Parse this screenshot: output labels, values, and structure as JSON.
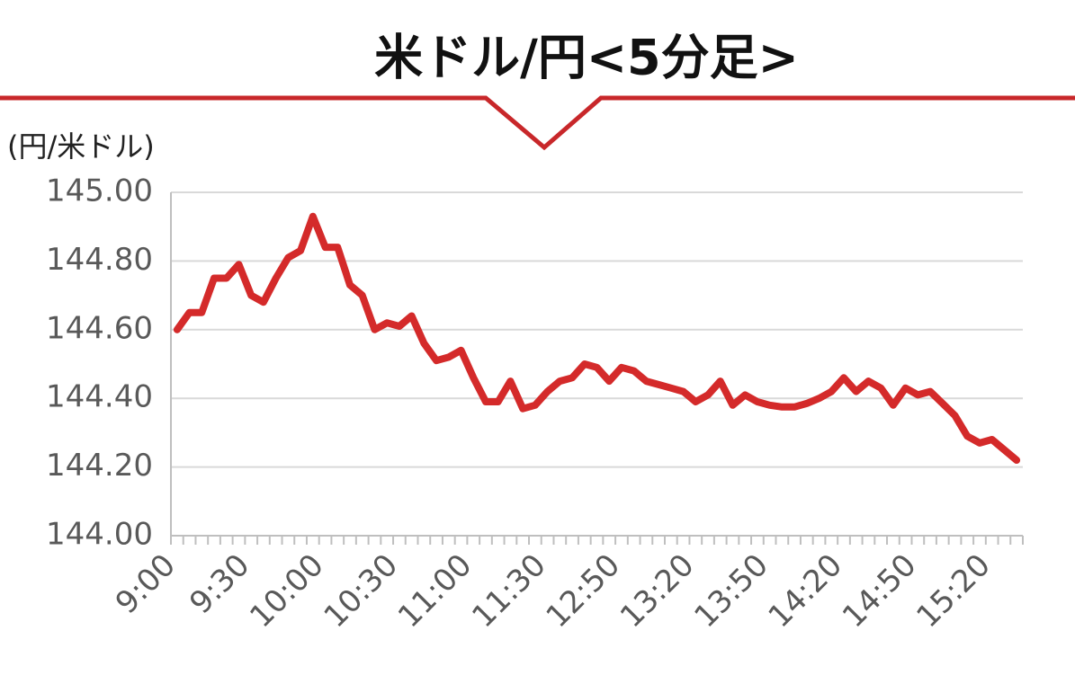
{
  "chart_data": {
    "type": "line",
    "title": "米ドル/円<5分足>",
    "y_label": "(円/米ドル)",
    "categories": [
      "9:00",
      null,
      null,
      null,
      null,
      null,
      "9:30",
      null,
      null,
      null,
      null,
      null,
      "10:00",
      null,
      null,
      null,
      null,
      null,
      "10:30",
      null,
      null,
      null,
      null,
      null,
      "11:00",
      null,
      null,
      null,
      null,
      null,
      "11:30",
      null,
      null,
      null,
      null,
      null,
      "12:50",
      null,
      null,
      null,
      null,
      null,
      "13:20",
      null,
      null,
      null,
      null,
      null,
      "13:50",
      null,
      null,
      null,
      null,
      null,
      "14:20",
      null,
      null,
      null,
      null,
      null,
      "14:50",
      null,
      null,
      null,
      null,
      null,
      "15:20",
      null,
      null
    ],
    "values": [
      144.6,
      144.65,
      144.65,
      144.75,
      144.75,
      144.79,
      144.7,
      144.68,
      144.75,
      144.81,
      144.83,
      144.93,
      144.84,
      144.84,
      144.73,
      144.7,
      144.6,
      144.62,
      144.61,
      144.64,
      144.56,
      144.51,
      144.52,
      144.54,
      144.46,
      144.39,
      144.39,
      144.45,
      144.37,
      144.38,
      144.42,
      144.45,
      144.46,
      144.5,
      144.49,
      144.45,
      144.49,
      144.48,
      144.45,
      144.44,
      144.43,
      144.42,
      144.39,
      144.41,
      144.45,
      144.38,
      144.41,
      144.39,
      144.38,
      144.375,
      144.375,
      144.385,
      144.4,
      144.42,
      144.46,
      144.42,
      144.45,
      144.43,
      144.38,
      144.43,
      144.41,
      144.42,
      144.385,
      144.35,
      144.29,
      144.27,
      144.28,
      144.25,
      144.22
    ],
    "color": "#d42a2a",
    "ylim": [
      144.0,
      145.0
    ],
    "yticks": [
      {
        "value": 144.0,
        "label": "144.00"
      },
      {
        "value": 144.2,
        "label": "144.20"
      },
      {
        "value": 144.4,
        "label": "144.40"
      },
      {
        "value": 144.6,
        "label": "144.60"
      },
      {
        "value": 144.8,
        "label": "144.80"
      },
      {
        "value": 145.0,
        "label": "145.00"
      }
    ],
    "grid": true
  }
}
